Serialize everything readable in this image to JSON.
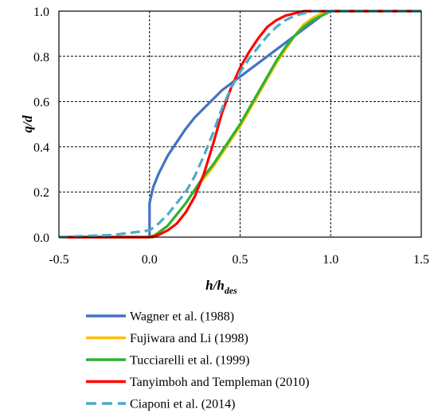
{
  "chart_data": {
    "type": "line",
    "xlabel": "h/h",
    "xlabel_sub": "des",
    "ylabel": "q/d",
    "xlim": [
      -0.5,
      1.5
    ],
    "ylim": [
      0,
      1
    ],
    "xticks": [
      "-0.5",
      "0.0",
      "0.5",
      "1.0",
      "1.5"
    ],
    "yticks": [
      "0.0",
      "0.2",
      "0.4",
      "0.6",
      "0.8",
      "1.0"
    ],
    "grid": true,
    "legend_position": "bottom",
    "series": [
      {
        "name": "Wagner et al. (1988)",
        "color": "#4472c4",
        "style": "solid",
        "x": [
          -0.5,
          0.0,
          0.0,
          0.02,
          0.05,
          0.1,
          0.15,
          0.2,
          0.25,
          0.3,
          0.35,
          0.4,
          0.45,
          0.5,
          0.55,
          0.6,
          0.65,
          0.7,
          0.75,
          0.8,
          0.85,
          0.9,
          0.95,
          1.0,
          1.5
        ],
        "y": [
          0.0,
          0.0,
          0.15,
          0.22,
          0.28,
          0.36,
          0.42,
          0.48,
          0.53,
          0.57,
          0.61,
          0.65,
          0.68,
          0.71,
          0.74,
          0.77,
          0.8,
          0.83,
          0.86,
          0.89,
          0.92,
          0.95,
          0.98,
          1.0,
          1.0
        ]
      },
      {
        "name": "Fujiwara and Li (1998)",
        "color": "#ffc000",
        "style": "solid",
        "x": [
          -0.5,
          0.0,
          0.05,
          0.1,
          0.15,
          0.2,
          0.25,
          0.3,
          0.35,
          0.4,
          0.45,
          0.5,
          0.55,
          0.6,
          0.65,
          0.7,
          0.75,
          0.8,
          0.85,
          0.9,
          0.95,
          1.0,
          1.5
        ],
        "y": [
          0.0,
          0.0,
          0.02,
          0.05,
          0.1,
          0.15,
          0.21,
          0.26,
          0.31,
          0.37,
          0.43,
          0.49,
          0.56,
          0.63,
          0.7,
          0.77,
          0.83,
          0.89,
          0.94,
          0.97,
          0.99,
          1.0,
          1.0
        ]
      },
      {
        "name": "Tucciarelli et al. (1999)",
        "color": "#2eb135",
        "style": "solid",
        "x": [
          -0.5,
          0.02,
          0.05,
          0.1,
          0.15,
          0.2,
          0.25,
          0.3,
          0.35,
          0.4,
          0.45,
          0.5,
          0.55,
          0.6,
          0.65,
          0.7,
          0.75,
          0.8,
          0.85,
          0.9,
          0.95,
          1.0,
          1.5
        ],
        "y": [
          0.0,
          0.0,
          0.02,
          0.05,
          0.1,
          0.15,
          0.21,
          0.27,
          0.32,
          0.38,
          0.44,
          0.5,
          0.57,
          0.64,
          0.71,
          0.78,
          0.84,
          0.89,
          0.93,
          0.96,
          0.98,
          1.0,
          1.0
        ]
      },
      {
        "name": "Tanyimboh and Templeman (2010)",
        "color": "#ff0000",
        "style": "solid",
        "x": [
          -0.5,
          0.0,
          0.05,
          0.1,
          0.15,
          0.2,
          0.25,
          0.3,
          0.35,
          0.4,
          0.45,
          0.5,
          0.55,
          0.6,
          0.65,
          0.7,
          0.75,
          0.8,
          0.85,
          0.9,
          0.95,
          1.0,
          1.5
        ],
        "y": [
          0.0,
          0.0,
          0.01,
          0.03,
          0.06,
          0.11,
          0.18,
          0.28,
          0.41,
          0.55,
          0.66,
          0.75,
          0.82,
          0.88,
          0.93,
          0.96,
          0.98,
          0.99,
          1.0,
          1.0,
          1.0,
          1.0,
          1.0
        ]
      },
      {
        "name": "Ciaponi et al. (2014)",
        "color": "#4bacc6",
        "style": "dashed",
        "x": [
          -0.5,
          -0.2,
          0.0,
          0.05,
          0.1,
          0.15,
          0.2,
          0.25,
          0.3,
          0.35,
          0.4,
          0.45,
          0.5,
          0.55,
          0.6,
          0.65,
          0.7,
          0.75,
          0.8,
          0.85,
          0.9,
          0.95,
          1.0,
          1.5
        ],
        "y": [
          0.0,
          0.01,
          0.03,
          0.06,
          0.1,
          0.15,
          0.2,
          0.27,
          0.36,
          0.46,
          0.57,
          0.66,
          0.73,
          0.79,
          0.84,
          0.89,
          0.93,
          0.96,
          0.98,
          0.99,
          1.0,
          1.0,
          1.0,
          1.0
        ]
      }
    ]
  }
}
